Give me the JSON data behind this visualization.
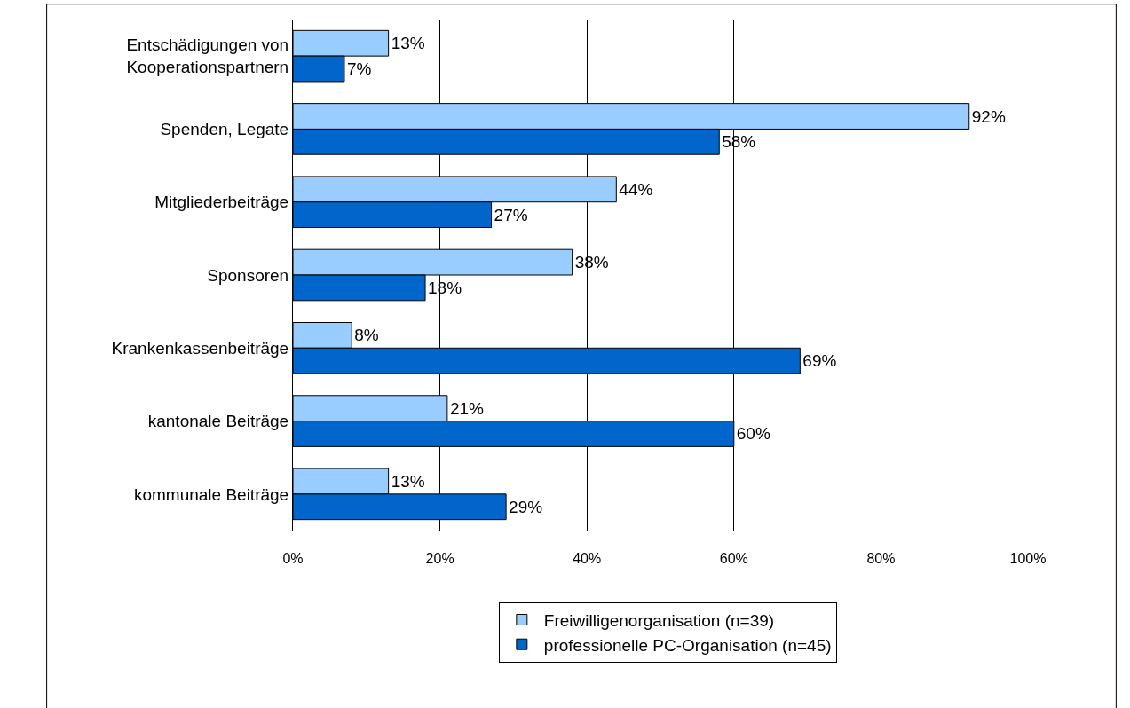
{
  "chart_data": {
    "type": "bar",
    "orientation": "horizontal",
    "categories": [
      "Entschädigungen von\nKooperationspartnern",
      "Spenden, Legate",
      "Mitgliederbeiträge",
      "Sponsoren",
      "Krankenkassenbeiträge",
      "kantonale Beiträge",
      "kommunale Beiträge"
    ],
    "series": [
      {
        "name": "Freiwilligenorganisation (n=39)",
        "color": "#99ccff",
        "values": [
          13,
          92,
          44,
          38,
          8,
          21,
          13
        ],
        "value_labels": [
          "13%",
          "92%",
          "44%",
          "38%",
          "8%",
          "21%",
          "13%"
        ]
      },
      {
        "name": "professionelle PC-Organisation (n=45)",
        "color": "#0066cc",
        "values": [
          7,
          58,
          27,
          18,
          69,
          60,
          29
        ],
        "value_labels": [
          "7%",
          "58%",
          "27%",
          "18%",
          "69%",
          "60%",
          "29%"
        ]
      }
    ],
    "xlim": [
      0,
      100
    ],
    "xticks": [
      {
        "value": 0,
        "label": "0%"
      },
      {
        "value": 20,
        "label": "20%"
      },
      {
        "value": 40,
        "label": "40%"
      },
      {
        "value": 60,
        "label": "60%"
      },
      {
        "value": 80,
        "label": "80%"
      },
      {
        "value": 100,
        "label": "100%"
      }
    ],
    "grid": "x",
    "legend": "bottom"
  }
}
